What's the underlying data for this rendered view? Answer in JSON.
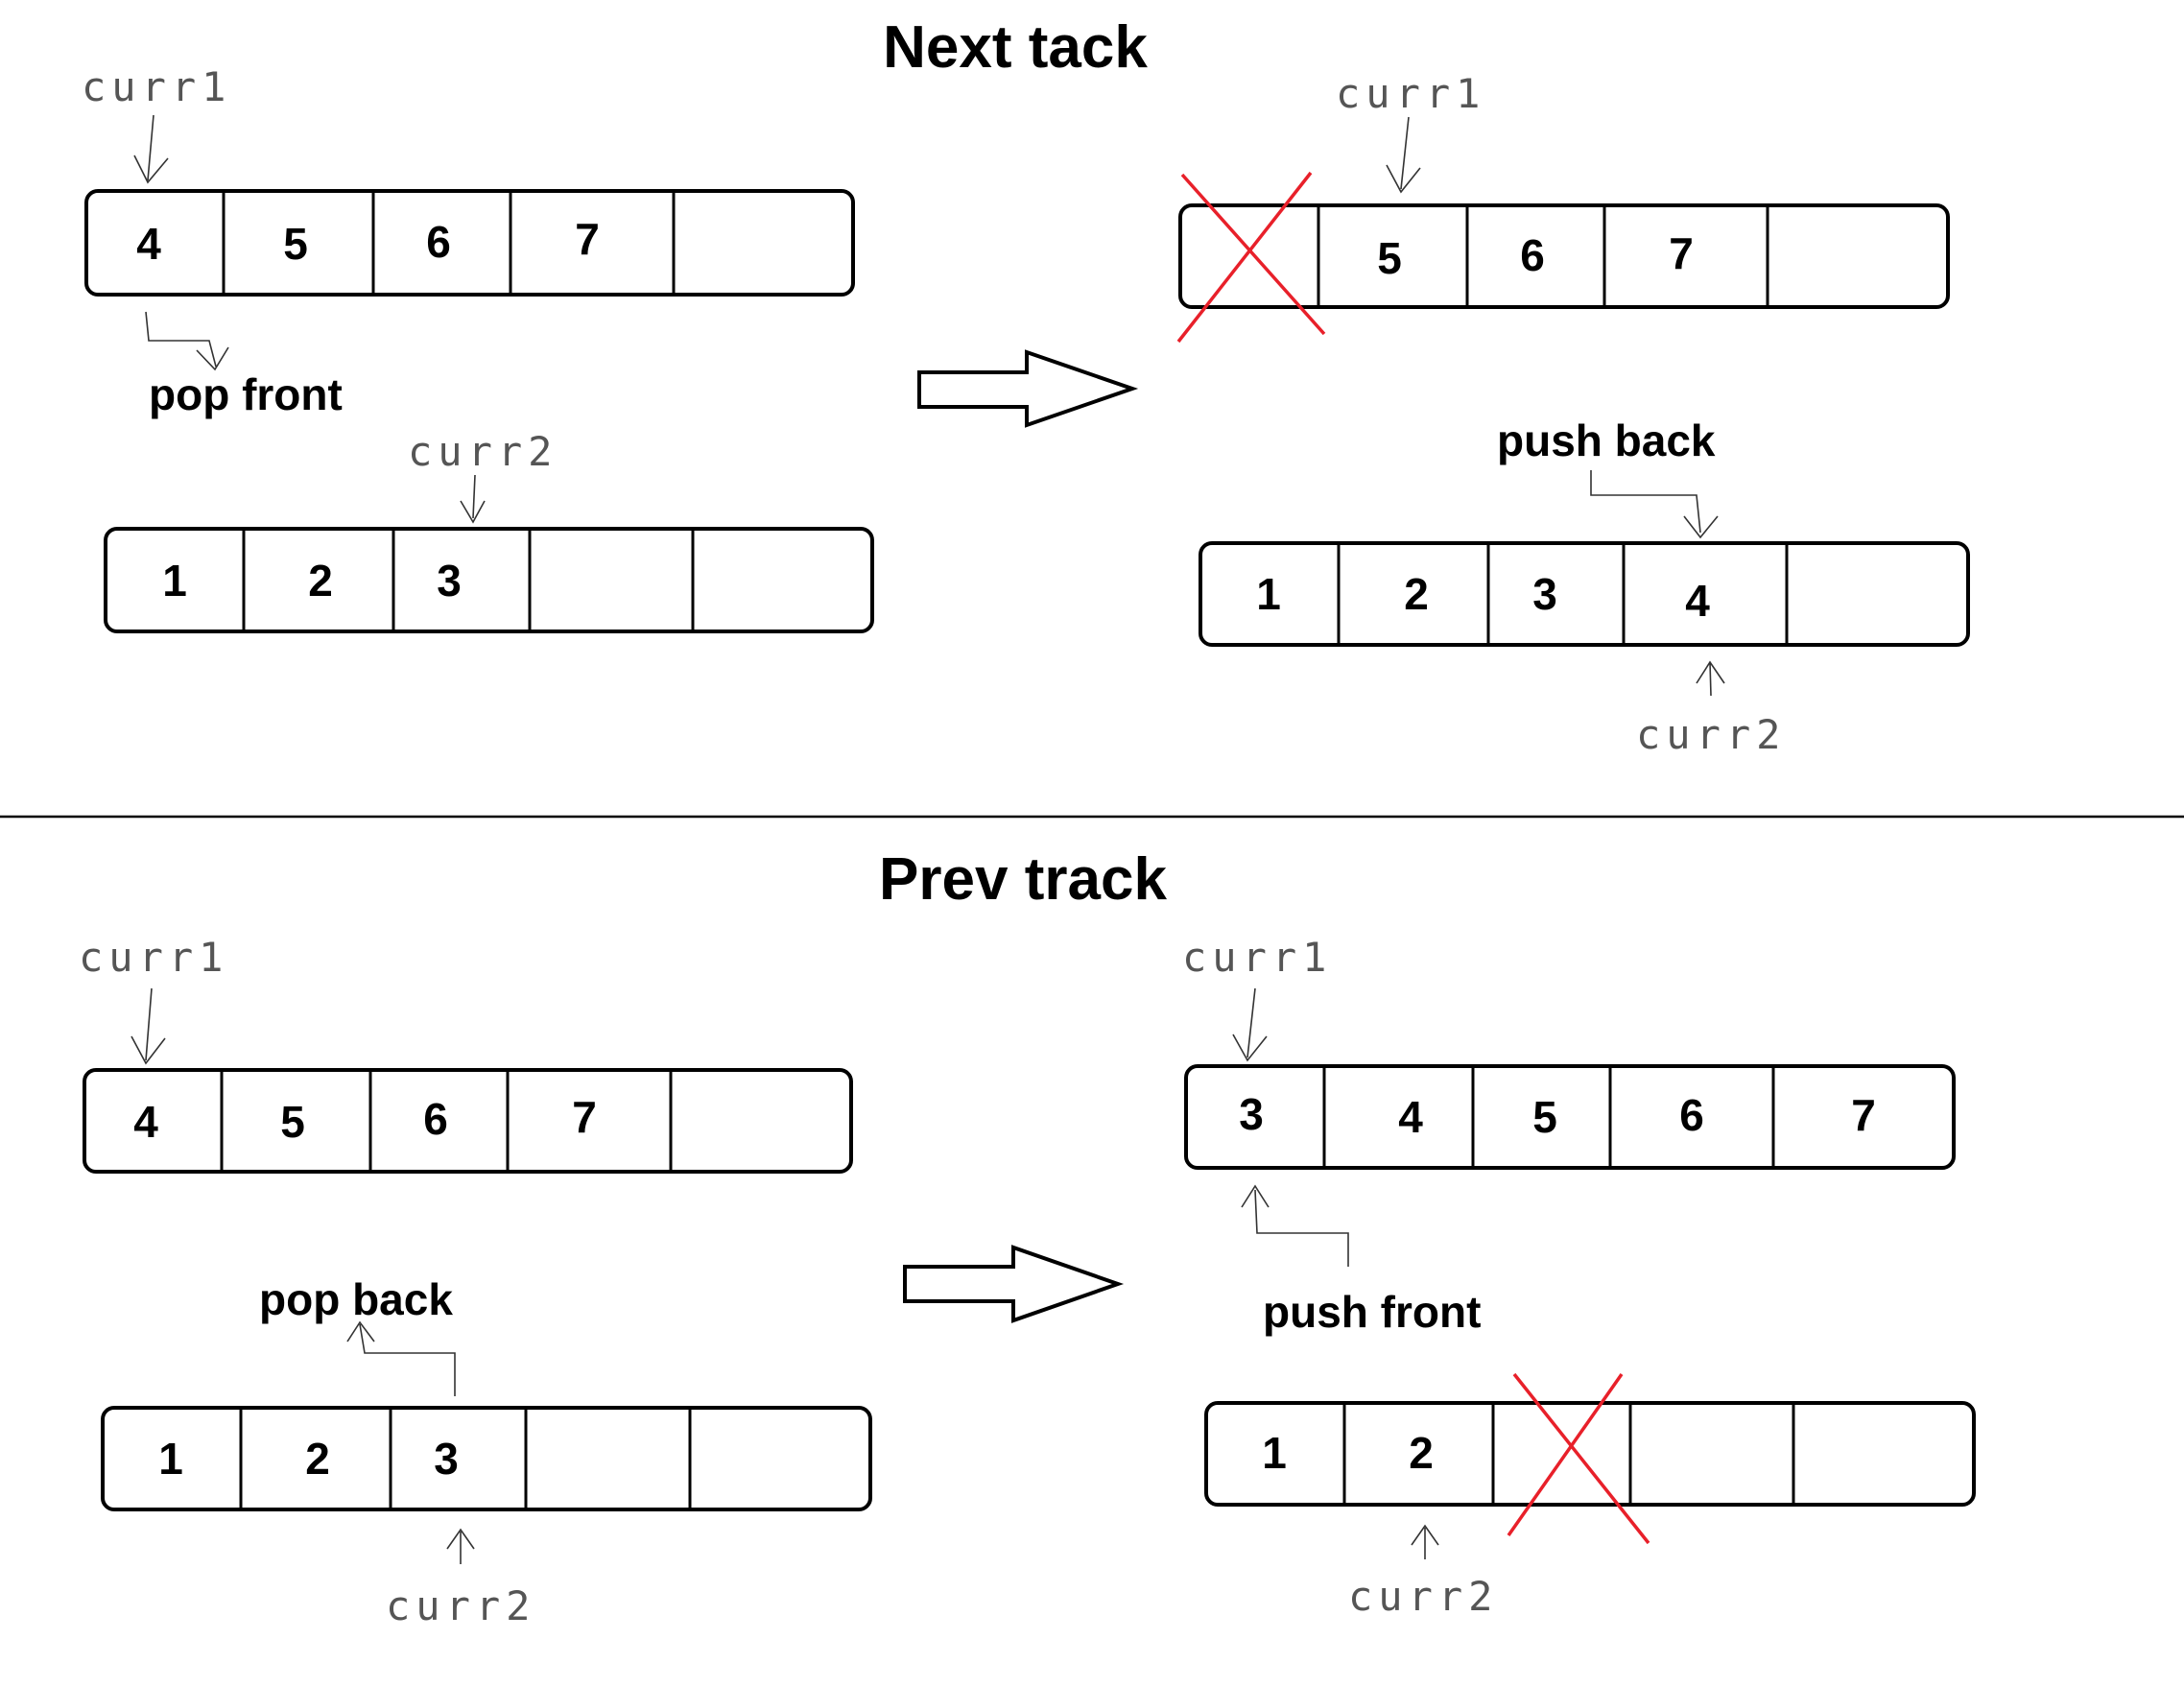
{
  "titles": {
    "top": "Next tack",
    "bottom": "Prev track"
  },
  "operations": {
    "top_left": "pop front",
    "top_right": "push back",
    "bottom_left": "pop back",
    "bottom_right": "push front"
  },
  "handwritten": {
    "curr1": "curr1",
    "curr2": "curr2"
  },
  "arrays": [
    {
      "id": "next-before-curr1",
      "cells": [
        "4",
        "5",
        "6",
        "7",
        ""
      ]
    },
    {
      "id": "next-before-curr2",
      "cells": [
        "1",
        "2",
        "3",
        "",
        ""
      ]
    },
    {
      "id": "next-after-curr1",
      "cells": [
        "",
        "5",
        "6",
        "7",
        ""
      ],
      "crossed_cell": 1
    },
    {
      "id": "next-after-curr2",
      "cells": [
        "1",
        "2",
        "3",
        "4",
        ""
      ]
    },
    {
      "id": "prev-before-curr1",
      "cells": [
        "4",
        "5",
        "6",
        "7",
        ""
      ]
    },
    {
      "id": "prev-before-curr2",
      "cells": [
        "1",
        "2",
        "3",
        "",
        ""
      ]
    },
    {
      "id": "prev-after-curr1",
      "cells": [
        "3",
        "4",
        "5",
        "6",
        "7"
      ]
    },
    {
      "id": "prev-after-curr2",
      "cells": [
        "1",
        "2",
        "",
        "",
        ""
      ],
      "crossed_cell": 3
    }
  ],
  "colors": {
    "cross": "#e8202a",
    "stroke": "#000000"
  }
}
